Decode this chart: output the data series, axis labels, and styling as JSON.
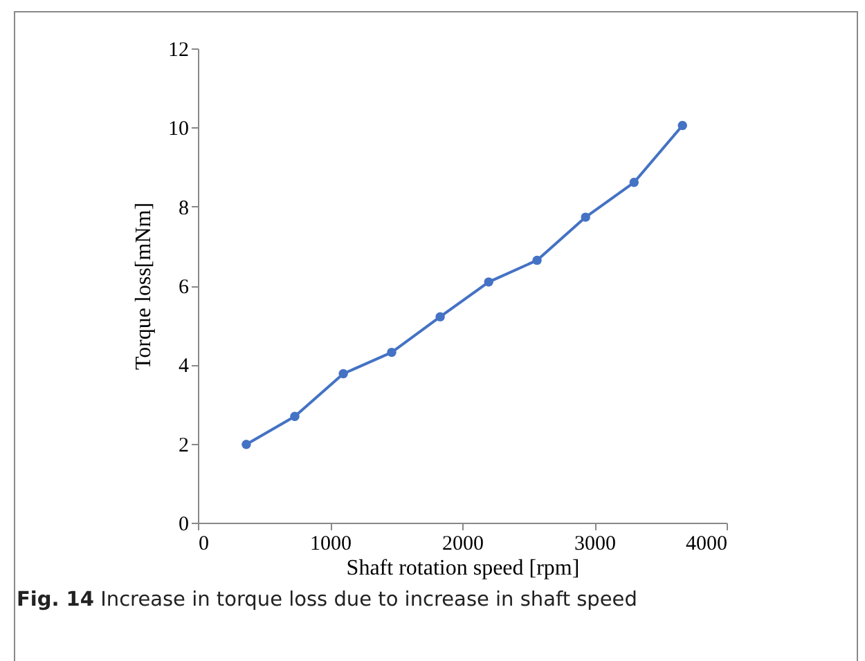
{
  "chart_data": {
    "type": "line",
    "xlabel": "Shaft rotation speed [rpm]",
    "ylabel": "Torque loss[mNm]",
    "x": [
      366,
      733,
      1100,
      1466,
      1833,
      2200,
      2566,
      2933,
      3300,
      3666
    ],
    "series": [
      {
        "color": "#4472c4",
        "values": [
          1.98,
          2.69,
          3.77,
          4.31,
          5.21,
          6.09,
          6.64,
          7.73,
          8.61,
          10.05
        ]
      }
    ],
    "xlim": [
      0,
      4000
    ],
    "xticks": [
      0,
      1000,
      2000,
      3000,
      4000
    ],
    "ylim": [
      0,
      12
    ],
    "yticks": [
      0,
      2,
      4,
      6,
      8,
      10,
      12
    ],
    "grid": false,
    "legend": false,
    "marker": "circle",
    "line_style": "solid",
    "annotations": [
      "Fig. 14 Increase in torque loss due to increase in shaft speed"
    ]
  }
}
